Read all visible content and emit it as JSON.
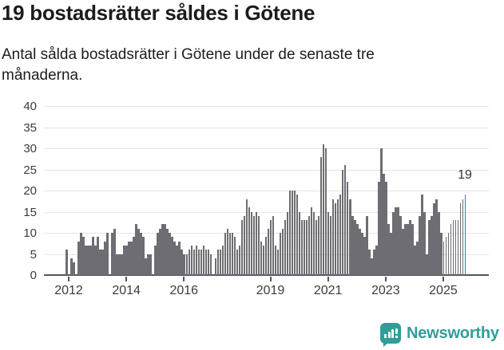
{
  "header": {
    "title": "19 bostadsrätter såldes i Götene",
    "subtitle": "Antal sålda bostadsrätter i Götene under de senaste tre månaderna."
  },
  "chart_data": {
    "type": "bar",
    "title": "19 bostadsrätter såldes i Götene",
    "ylabel": "",
    "xlabel": "",
    "ylim": [
      0,
      40
    ],
    "y_ticks": [
      0,
      5,
      10,
      15,
      20,
      25,
      30,
      35,
      40
    ],
    "grid": true,
    "frequency": "monthly",
    "x_start": "2011-12",
    "values": [
      6,
      0,
      4,
      3,
      0,
      8,
      10,
      9,
      7,
      7,
      7,
      9,
      7,
      9,
      6,
      6,
      8,
      10,
      0,
      10,
      11,
      5,
      5,
      5,
      7,
      7,
      8,
      8,
      9,
      12,
      11,
      10,
      9,
      4,
      5,
      5,
      0,
      7,
      10,
      11,
      12,
      12,
      11,
      10,
      9,
      8,
      7,
      8,
      6,
      5,
      5,
      6,
      7,
      6,
      7,
      6,
      6,
      7,
      6,
      6,
      5,
      0,
      4,
      6,
      6,
      7,
      10,
      11,
      10,
      10,
      9,
      6,
      7,
      13,
      14,
      18,
      16,
      15,
      14,
      15,
      14,
      8,
      7,
      9,
      11,
      13,
      14,
      7,
      6,
      10,
      11,
      13,
      15,
      20,
      20,
      20,
      19,
      15,
      13,
      13,
      13,
      14,
      16,
      15,
      13,
      14,
      28,
      31,
      30,
      15,
      14,
      18,
      17,
      18,
      19,
      25,
      26,
      22,
      18,
      14,
      13,
      12,
      11,
      10,
      9,
      14,
      6,
      4,
      6,
      7,
      22,
      30,
      24,
      22,
      12,
      10,
      15,
      16,
      16,
      14,
      11,
      12,
      12,
      13,
      12,
      7,
      8,
      14,
      19,
      15,
      5,
      13,
      14,
      17,
      18,
      15,
      10,
      8,
      9,
      10,
      12,
      13,
      13,
      13,
      17,
      18,
      19
    ],
    "x_ticks": [
      {
        "label": "2012",
        "index": 1
      },
      {
        "label": "2014",
        "index": 25
      },
      {
        "label": "2016",
        "index": 49
      },
      {
        "label": "2019",
        "index": 85
      },
      {
        "label": "2021",
        "index": 109
      },
      {
        "label": "2023",
        "index": 133
      },
      {
        "label": "2025",
        "index": 157
      }
    ],
    "highlight_index": 166,
    "highlight_value_label": "19",
    "thin_bar_count": 10,
    "bar_color": "#6d6d73",
    "highlight_color": "#00a3a3"
  },
  "footer": {
    "brand": "Newsworthy",
    "brand_color": "#2f9e99",
    "logo_icon": "bar-chart-speech-bubble-icon"
  }
}
